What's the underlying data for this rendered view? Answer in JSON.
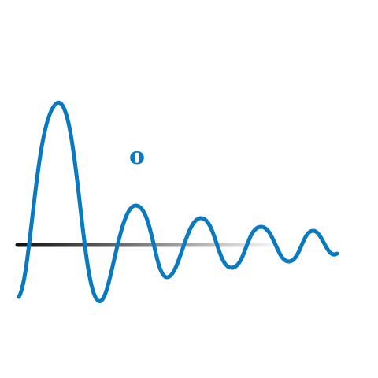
{
  "mark": {
    "letter": "o",
    "icon": "damped-wave-logo-icon",
    "colors": {
      "wave": "#0a7ac0",
      "letter": "#0a7ac0",
      "baseline_start": "#111111",
      "baseline_end": "#ffffff"
    }
  }
}
